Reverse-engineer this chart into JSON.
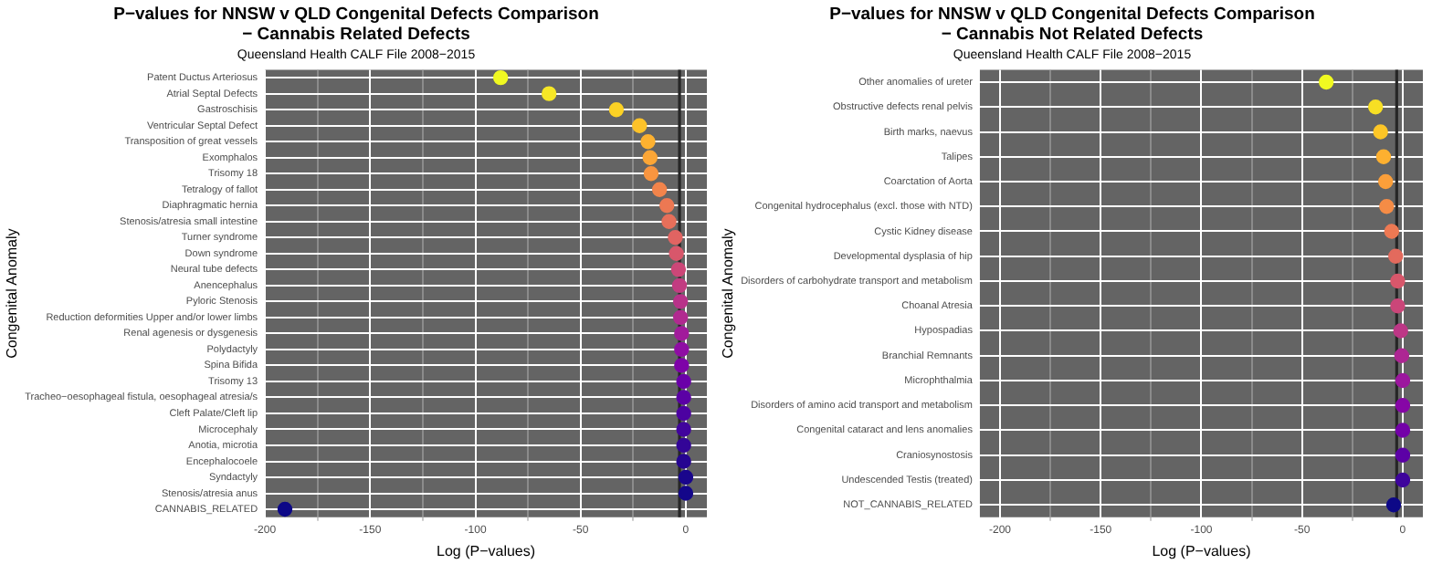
{
  "chart_data": [
    {
      "type": "scatter",
      "orientation": "horizontal",
      "title": "P−values for NNSW v QLD Congenital Defects Comparison\n− Cannabis Related Defects",
      "subtitle": "Queensland Health CALF File 2008−2015",
      "xlabel": "Log (P−values)",
      "ylabel": "Congenital Anomaly",
      "categories": [
        "Patent Ductus Arteriosus",
        "Atrial Septal Defects",
        "Gastroschisis",
        "Ventricular Septal Defect",
        "Transposition of great vessels",
        "Exomphalos",
        "Trisomy 18",
        "Tetralogy of fallot",
        "Diaphragmatic hernia",
        "Stenosis/atresia small intestine",
        "Turner syndrome",
        "Down syndrome",
        "Neural tube defects",
        "Anencephalus",
        "Pyloric Stenosis",
        "Reduction deformities Upper and/or lower limbs",
        "Renal agenesis or dysgenesis",
        "Polydactyly",
        "Spina Bifida",
        "Trisomy 13",
        "Tracheo−oesophageal fistula, oesophageal atresia/s",
        "Cleft Palate/Cleft lip",
        "Microcephaly",
        "Anotia, microtia",
        "Encephalocoele",
        "Syndactyly",
        "Stenosis/atresia anus",
        "CANNABIS_RELATED"
      ],
      "values": [
        -88,
        -65,
        -33,
        -22,
        -18,
        -17,
        -16.5,
        -12.5,
        -9,
        -8,
        -5,
        -4.5,
        -3.5,
        -3,
        -2.5,
        -2.5,
        -2,
        -2,
        -2,
        -1,
        -1,
        -1,
        -1,
        -1,
        -1,
        0,
        0,
        -190.5
      ],
      "colors": [
        "#f0f921",
        "#f6e726",
        "#fcd225",
        "#fdc229",
        "#fdb130",
        "#fca636",
        "#f89540",
        "#f2844b",
        "#ec7853",
        "#e76f5a",
        "#e16462",
        "#d8576b",
        "#cc4778",
        "#c23c81",
        "#b83289",
        "#b12a90",
        "#a11b9b",
        "#8f0da4",
        "#7e03a8",
        "#6a00a8",
        "#5b01a5",
        "#4c02a1",
        "#41049d",
        "#330597",
        "#260591",
        "#1a068c",
        "#14078a",
        "#0d0887"
      ],
      "xlim": [
        -200,
        10
      ],
      "xticks": [
        -200,
        {
          "value": -175,
          "label": null
        },
        -150,
        {
          "value": -125,
          "label": null
        },
        -100,
        {
          "value": -75,
          "label": null
        },
        -50,
        {
          "value": -25,
          "label": null
        },
        0
      ],
      "ref_lines": [
        {
          "axis": "x",
          "value": -3,
          "color": "#262626"
        }
      ],
      "grid": true,
      "legend": false,
      "marker": "circle"
    },
    {
      "type": "scatter",
      "orientation": "horizontal",
      "title": "P−values for NNSW v QLD Congenital Defects Comparison\n− Cannabis Not Related Defects",
      "subtitle": "Queensland Health CALF File 2008−2015",
      "xlabel": "Log (P−values)",
      "ylabel": "Congenital Anomaly",
      "categories": [
        "Other anomalies of ureter",
        "Obstructive defects renal pelvis",
        "Birth marks, naevus",
        "Talipes",
        "Coarctation of Aorta",
        "Congenital hydrocephalus (excl. those with NTD)",
        "Cystic Kidney disease",
        "Developmental dysplasia of hip",
        "Disorders of carbohydrate transport and metabolism",
        "Choanal Atresia",
        "Hypospadias",
        "Branchial Remnants",
        "Microphthalmia",
        "Disorders of amino acid transport and metabolism",
        "Congenital cataract and lens anomalies",
        "Craniosynostosis",
        "Undescended Testis (treated)",
        "NOT_CANNABIS_RELATED"
      ],
      "values": [
        -38,
        -13.5,
        -11,
        -9.5,
        -8.5,
        -8,
        -5.5,
        -3.5,
        -2.5,
        -2.5,
        -1,
        -0.5,
        0,
        0,
        0,
        0,
        0,
        -4.5
      ],
      "colors": [
        "#f0f921",
        "#f7df24",
        "#fdc627",
        "#fdb030",
        "#fb9f3a",
        "#f58c46",
        "#ed7953",
        "#e36a5d",
        "#d8576b",
        "#cb4679",
        "#bd3786",
        "#ad2793",
        "#9c179e",
        "#8606a6",
        "#7301a8",
        "#5c01a6",
        "#3e049c",
        "#0d0887"
      ],
      "xlim": [
        -210,
        10
      ],
      "xticks": [
        -200,
        {
          "value": -175,
          "label": null
        },
        -150,
        {
          "value": -125,
          "label": null
        },
        -100,
        {
          "value": -75,
          "label": null
        },
        -50,
        {
          "value": -25,
          "label": null
        },
        0
      ],
      "ref_lines": [
        {
          "axis": "x",
          "value": -3,
          "color": "#262626"
        }
      ],
      "grid": true,
      "legend": false,
      "marker": "circle"
    }
  ]
}
